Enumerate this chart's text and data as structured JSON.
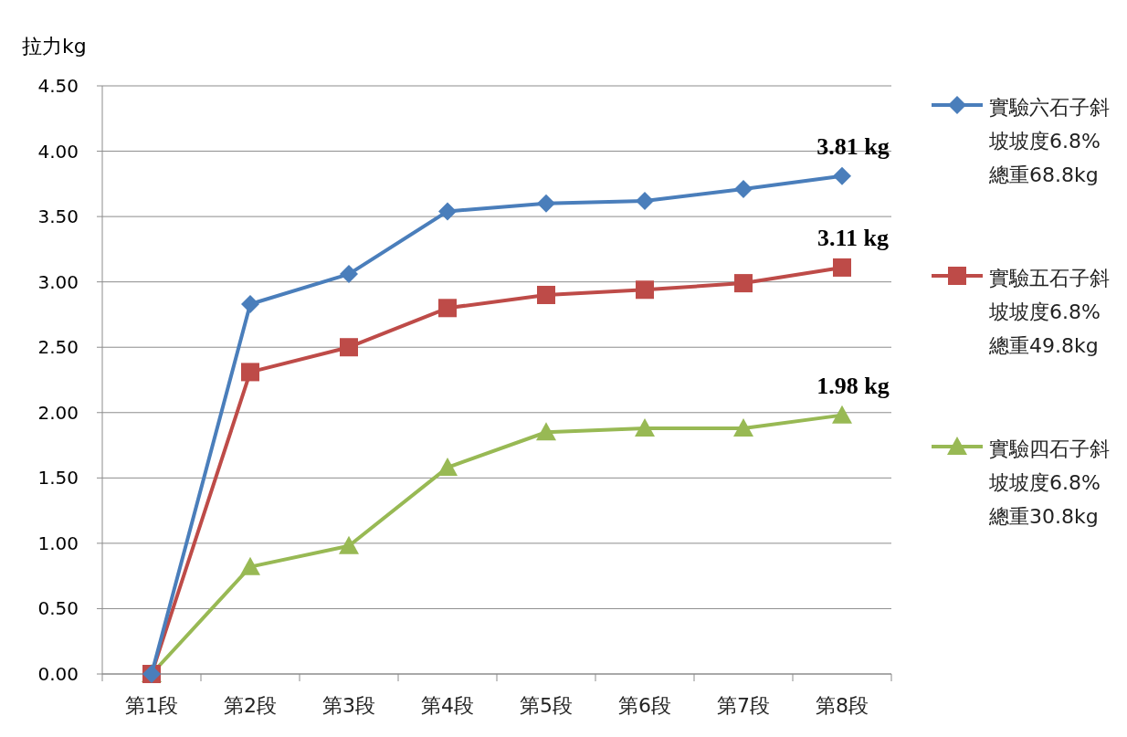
{
  "chart_data": {
    "type": "line",
    "ylabel": "拉力kg",
    "categories": [
      "第1段",
      "第2段",
      "第3段",
      "第4段",
      "第5段",
      "第6段",
      "第7段",
      "第8段"
    ],
    "ylim": [
      0,
      4.5
    ],
    "yticks": [
      {
        "value": 0,
        "label": "0.00"
      },
      {
        "value": 0.5,
        "label": "0.50"
      },
      {
        "value": 1,
        "label": "1.00"
      },
      {
        "value": 1.5,
        "label": "1.50"
      },
      {
        "value": 2,
        "label": "2.00"
      },
      {
        "value": 2.5,
        "label": "2.50"
      },
      {
        "value": 3,
        "label": "3.00"
      },
      {
        "value": 3.5,
        "label": "3.50"
      },
      {
        "value": 4,
        "label": "4.00"
      },
      {
        "value": 4.5,
        "label": "4.50"
      }
    ],
    "grid": "y",
    "legend": "right",
    "line_style": "solid",
    "series": [
      {
        "name": "實驗六石子斜坡坡度6.8%總重68.8kg",
        "color": "#4a7ebb",
        "marker": "diamond",
        "values": [
          0,
          2.83,
          3.06,
          3.54,
          3.6,
          3.62,
          3.71,
          3.81
        ],
        "value_labels": [
          null,
          null,
          null,
          null,
          null,
          null,
          null,
          "3.81 kg"
        ]
      },
      {
        "name": "實驗五石子斜坡坡度6.8%總重49.8kg",
        "color": "#be4b48",
        "marker": "square",
        "values": [
          0,
          2.31,
          2.5,
          2.8,
          2.9,
          2.94,
          2.99,
          3.11
        ],
        "value_labels": [
          null,
          null,
          null,
          null,
          null,
          null,
          null,
          "3.11 kg"
        ]
      },
      {
        "name": "實驗四石子斜坡坡度6.8%總重30.8kg",
        "color": "#98b954",
        "marker": "triangle",
        "values": [
          0,
          0.82,
          0.98,
          1.58,
          1.85,
          1.88,
          1.88,
          1.98
        ],
        "value_labels": [
          null,
          null,
          null,
          null,
          null,
          null,
          null,
          "1.98 kg"
        ]
      }
    ]
  }
}
